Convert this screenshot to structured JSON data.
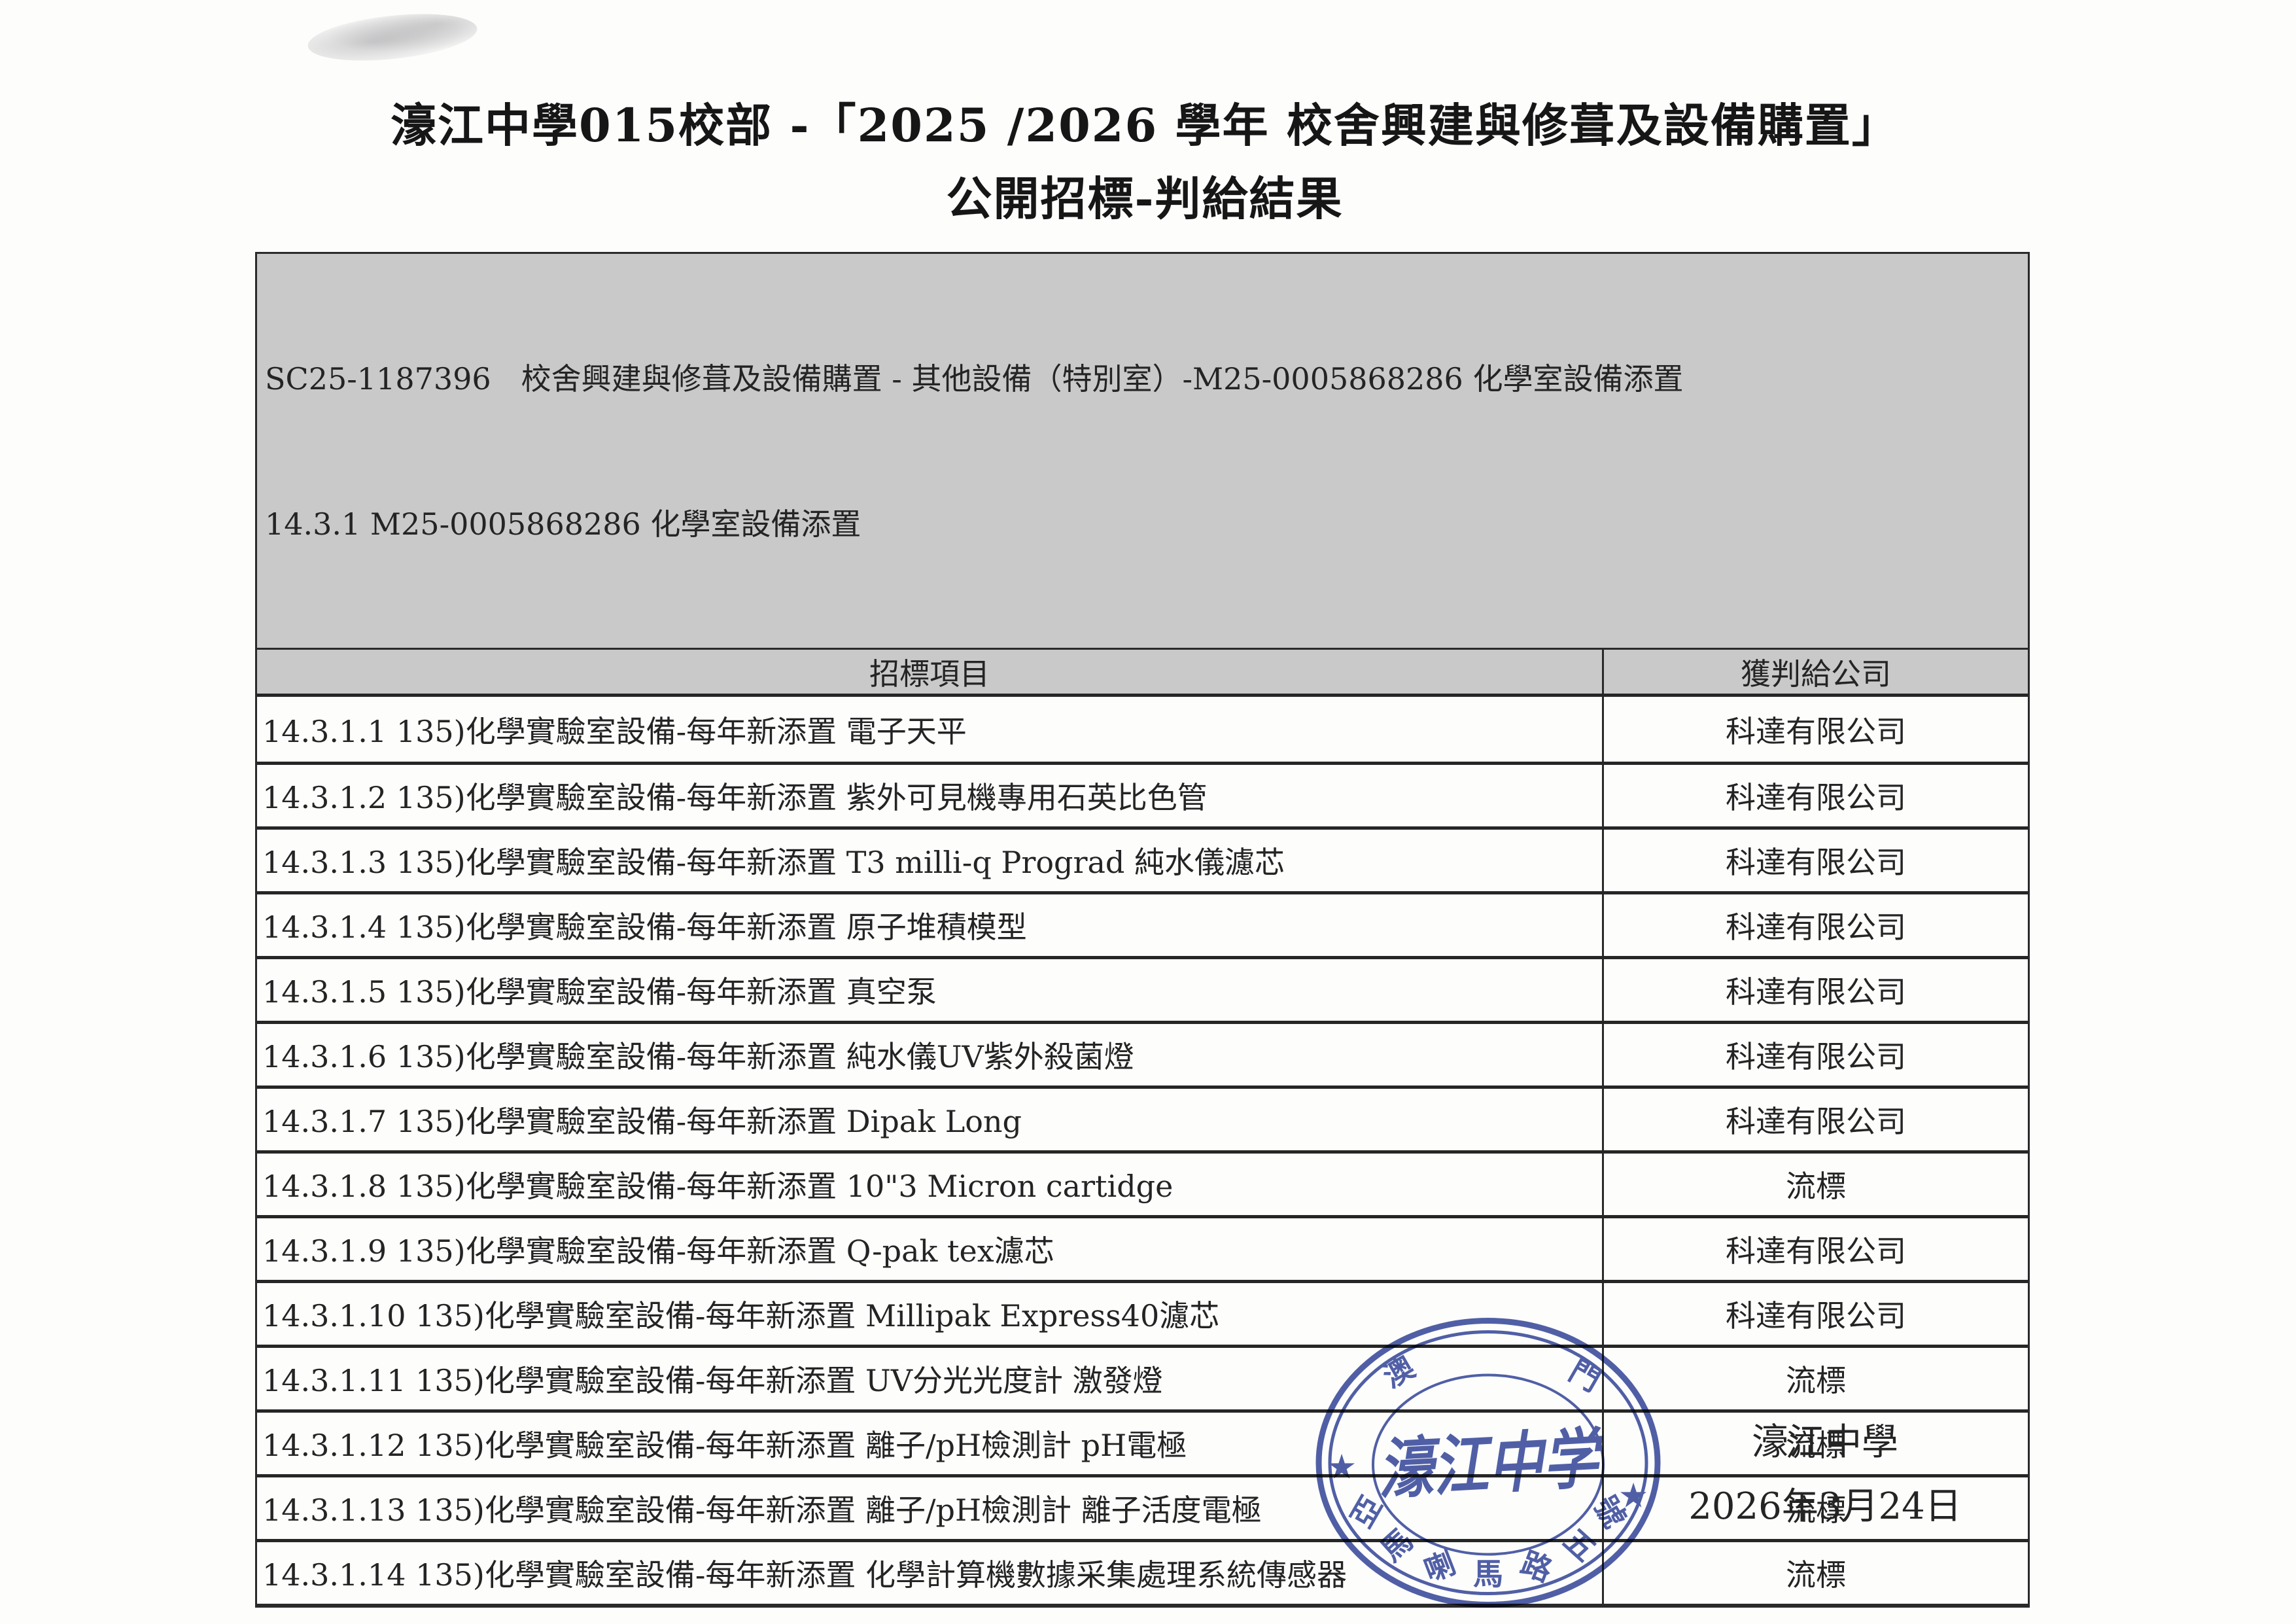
{
  "title": {
    "line1": "濠江中學015校部 -「2025 /2026 學年 校舍興建與修葺及設備購置」",
    "line2": "公開招標-判給結果"
  },
  "table": {
    "section_line1": "SC25-1187396　校舍興建與修葺及設備購置 - 其他設備（特別室）-M25-0005868286 化學室設備添置",
    "section_line2": "14.3.1 M25-0005868286 化學室設備添置",
    "columns": [
      "招標項目",
      "獲判給公司"
    ],
    "rows": [
      {
        "item": "14.3.1.1 135)化學實驗室設備-每年新添置 電子天平",
        "company": "科達有限公司"
      },
      {
        "item": "14.3.1.2 135)化學實驗室設備-每年新添置 紫外可見機專用石英比色管",
        "company": "科達有限公司"
      },
      {
        "item": "14.3.1.3 135)化學實驗室設備-每年新添置 T3 milli-q Prograd 純水儀濾芯",
        "company": "科達有限公司"
      },
      {
        "item": "14.3.1.4 135)化學實驗室設備-每年新添置 原子堆積模型",
        "company": "科達有限公司"
      },
      {
        "item": "14.3.1.5 135)化學實驗室設備-每年新添置 真空泵",
        "company": "科達有限公司"
      },
      {
        "item": "14.3.1.6 135)化學實驗室設備-每年新添置 純水儀UV紫外殺菌燈",
        "company": "科達有限公司"
      },
      {
        "item": "14.3.1.7 135)化學實驗室設備-每年新添置 Dipak Long",
        "company": "科達有限公司"
      },
      {
        "item": "14.3.1.8 135)化學實驗室設備-每年新添置 10\"3 Micron cartidge",
        "company": "流標"
      },
      {
        "item": "14.3.1.9 135)化學實驗室設備-每年新添置 Q-pak tex濾芯",
        "company": "科達有限公司"
      },
      {
        "item": "14.3.1.10 135)化學實驗室設備-每年新添置 Millipak Express40濾芯",
        "company": "科達有限公司"
      },
      {
        "item": "14.3.1.11 135)化學實驗室設備-每年新添置 UV分光光度計 激發燈",
        "company": "流標"
      },
      {
        "item": "14.3.1.12 135)化學實驗室設備-每年新添置 離子/pH檢測計 pH電極",
        "company": "流標"
      },
      {
        "item": "14.3.1.13 135)化學實驗室設備-每年新添置 離子/pH檢測計 離子活度電極",
        "company": "流標"
      },
      {
        "item": "14.3.1.14 135)化學實驗室設備-每年新添置 化學計算機數據采集處理系統傳感器",
        "company": "流標"
      }
    ]
  },
  "stamp": {
    "color": "#3d4f9e",
    "top_left_char": "澳",
    "top_right_char": "門",
    "star": "★",
    "center_text": "濠江中学",
    "bottom_chars": [
      "亞",
      "馬",
      "喇",
      "馬",
      "路",
      "五",
      "號"
    ]
  },
  "signature": {
    "school": "濠江中學",
    "date": "2026年3月24日"
  }
}
